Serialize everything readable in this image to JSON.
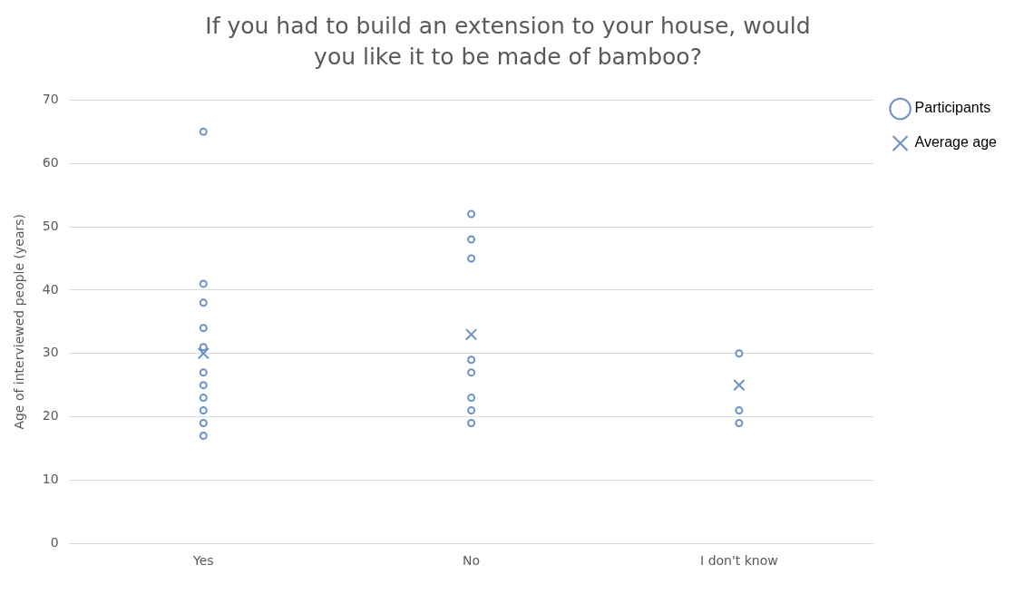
{
  "chart_data": {
    "type": "scatter",
    "title": "If you had to build an extension to your house, would you like it to be made of bamboo?",
    "ylabel": "Age of interviewed people (years)",
    "categories": [
      "Yes",
      "No",
      "I don't know"
    ],
    "series": [
      {
        "name": "Participants",
        "color": "#6a93c3",
        "marker": "circle",
        "x": [
          "Yes",
          "Yes",
          "Yes",
          "Yes",
          "Yes",
          "Yes",
          "Yes",
          "Yes",
          "Yes",
          "Yes",
          "Yes",
          "No",
          "No",
          "No",
          "No",
          "No",
          "No",
          "No",
          "No",
          "I don't know",
          "I don't know",
          "I don't know"
        ],
        "values": [
          65,
          41,
          38,
          34,
          31,
          27,
          25,
          23,
          21,
          19,
          17,
          52,
          48,
          45,
          29,
          27,
          23,
          21,
          19,
          30,
          21,
          19
        ]
      },
      {
        "name": "Average age",
        "color": "#6a93c3",
        "marker": "cross",
        "x": [
          "Yes",
          "No",
          "I don't know"
        ],
        "values": [
          30,
          33,
          25
        ]
      }
    ],
    "ylim": [
      0,
      70
    ],
    "yticks": [
      0,
      10,
      20,
      30,
      40,
      50,
      60,
      70
    ],
    "grid": "y",
    "legend": "top right"
  }
}
